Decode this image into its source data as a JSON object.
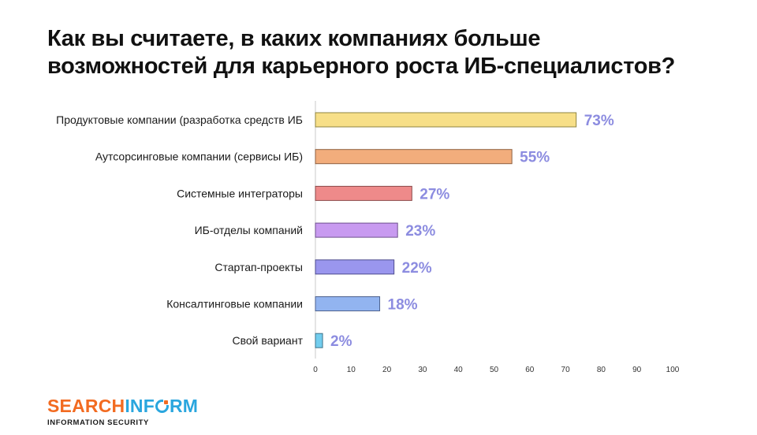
{
  "title": {
    "line1": "Как вы считаете, в каких компаниях больше",
    "line2": "возможностей для карьерного роста ИБ-специалистов?"
  },
  "chart_data": {
    "type": "bar",
    "orientation": "horizontal",
    "categories": [
      "Продуктовые компании (разработка средств ИБ",
      "Аутсорсинговые компании (сервисы ИБ)",
      "Системные интеграторы",
      "ИБ-отделы компаний",
      "Стартап-проекты",
      "Консалтинговые компании",
      "Свой вариант"
    ],
    "values": [
      73,
      55,
      27,
      23,
      22,
      18,
      2
    ],
    "value_labels": [
      "73%",
      "55%",
      "27%",
      "23%",
      "22%",
      "18%",
      "2%"
    ],
    "bar_colors": [
      "#f7df88",
      "#f2ad7c",
      "#ee8a8a",
      "#c89af0",
      "#9a96ee",
      "#92b4f0",
      "#72cdee"
    ],
    "bar_borders": [
      "#8f8440",
      "#8e6040",
      "#8a4a4a",
      "#6e4f8e",
      "#4e4c8e",
      "#4e628e",
      "#3f7288"
    ],
    "value_label_color": "#8c8ce0",
    "xlim": [
      0,
      100
    ],
    "xticks": [
      0,
      10,
      20,
      30,
      40,
      50,
      60,
      70,
      80,
      90,
      100
    ],
    "grid": false,
    "legend": "none"
  },
  "logo": {
    "part1": "SEARCH",
    "part2": "INF",
    "part3": "RM",
    "subtitle": "INFORMATION SECURITY",
    "colors": {
      "orange": "#f26b21",
      "blue": "#2aa6de"
    }
  }
}
